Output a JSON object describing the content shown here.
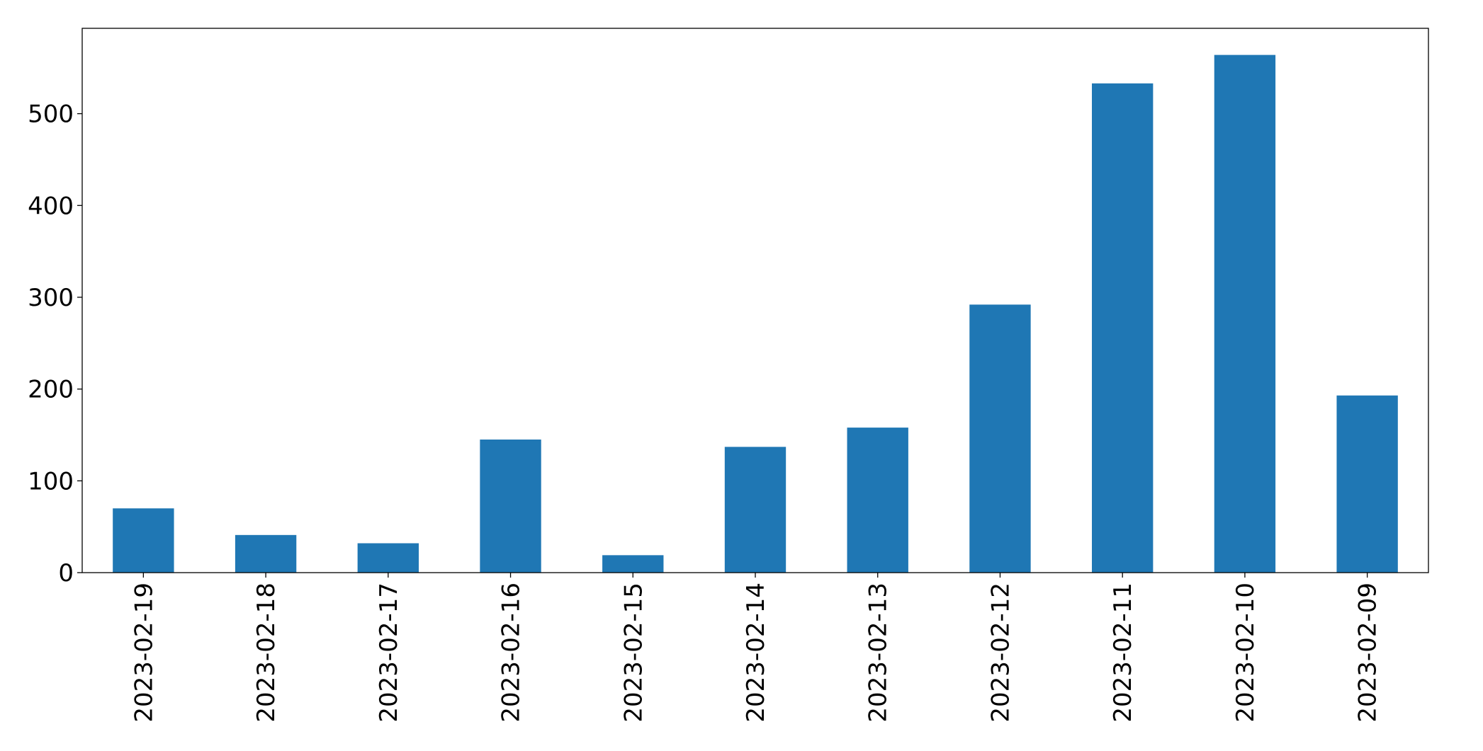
{
  "chart_data": {
    "type": "bar",
    "categories": [
      "2023-02-19",
      "2023-02-18",
      "2023-02-17",
      "2023-02-16",
      "2023-02-15",
      "2023-02-14",
      "2023-02-13",
      "2023-02-12",
      "2023-02-11",
      "2023-02-10",
      "2023-02-09"
    ],
    "values": [
      70,
      41,
      32,
      145,
      19,
      137,
      158,
      292,
      533,
      564,
      193
    ],
    "color": "#1f77b4",
    "ylim": [
      0,
      593
    ],
    "yticks": [
      0,
      100,
      200,
      300,
      400,
      500
    ],
    "grid": false
  }
}
